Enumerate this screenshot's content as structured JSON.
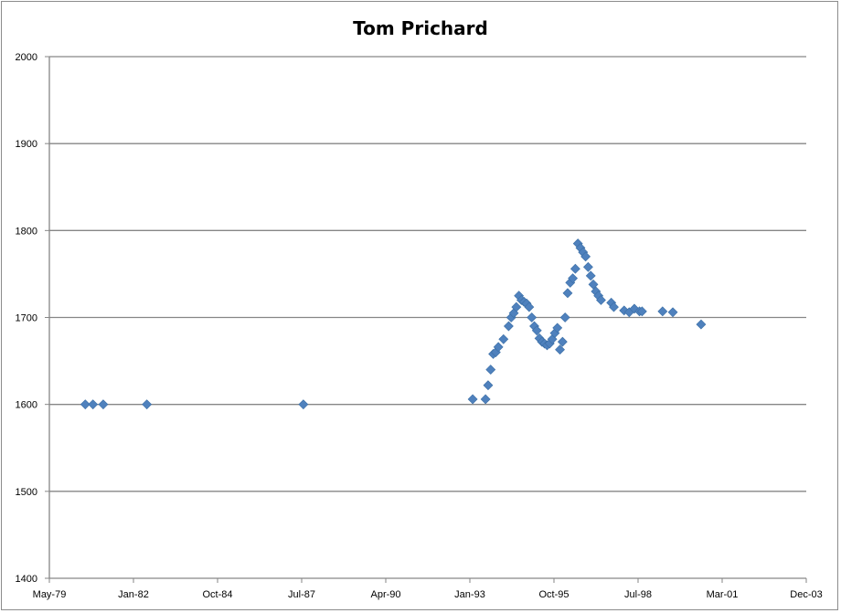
{
  "chart_data": {
    "type": "scatter",
    "title": "Tom Prichard",
    "xlabel": "",
    "ylabel": "",
    "ylim": [
      1400,
      2000
    ],
    "yticks": [
      1400,
      1500,
      1600,
      1700,
      1800,
      1900,
      2000
    ],
    "xlim": [
      "1979-05",
      "2003-12"
    ],
    "xticks": [
      "May-79",
      "Jan-82",
      "Oct-84",
      "Jul-87",
      "Apr-90",
      "Jan-93",
      "Oct-95",
      "Jul-98",
      "Mar-01",
      "Dec-03"
    ],
    "grid": "horizontal",
    "legend": "none",
    "marker": "diamond",
    "marker_color": "#4f81bd",
    "x": [
      "1980-07",
      "1980-10",
      "1981-02",
      "1982-07",
      "1987-08",
      "1993-02",
      "1993-07",
      "1993-08",
      "1993-09",
      "1993-10",
      "1993-11",
      "1993-12",
      "1994-02",
      "1994-04",
      "1994-05",
      "1994-06",
      "1994-07",
      "1994-08",
      "1994-09",
      "1994-10",
      "1994-11",
      "1994-12",
      "1995-01",
      "1995-02",
      "1995-03",
      "1995-04",
      "1995-05",
      "1995-06",
      "1995-07",
      "1995-08",
      "1995-09",
      "1995-10",
      "1995-11",
      "1995-12",
      "1996-01",
      "1996-02",
      "1996-03",
      "1996-04",
      "1996-05",
      "1996-06",
      "1996-07",
      "1996-08",
      "1996-09",
      "1996-10",
      "1996-11",
      "1996-12",
      "1997-01",
      "1997-02",
      "1997-03",
      "1997-04",
      "1997-08",
      "1997-09",
      "1998-01",
      "1998-03",
      "1998-05",
      "1998-07",
      "1998-08",
      "1999-04",
      "1999-08",
      "2000-07"
    ],
    "y": [
      1600,
      1600,
      1600,
      1600,
      1600,
      1606,
      1606,
      1622,
      1640,
      1658,
      1660,
      1666,
      1675,
      1690,
      1700,
      1705,
      1712,
      1725,
      1720,
      1718,
      1716,
      1712,
      1700,
      1690,
      1685,
      1676,
      1672,
      1670,
      1668,
      1670,
      1675,
      1682,
      1688,
      1663,
      1672,
      1700,
      1728,
      1740,
      1745,
      1756,
      1785,
      1780,
      1775,
      1770,
      1758,
      1748,
      1738,
      1730,
      1725,
      1720,
      1717,
      1712,
      1708,
      1706,
      1710,
      1707,
      1707,
      1707,
      1706,
      1692
    ]
  }
}
